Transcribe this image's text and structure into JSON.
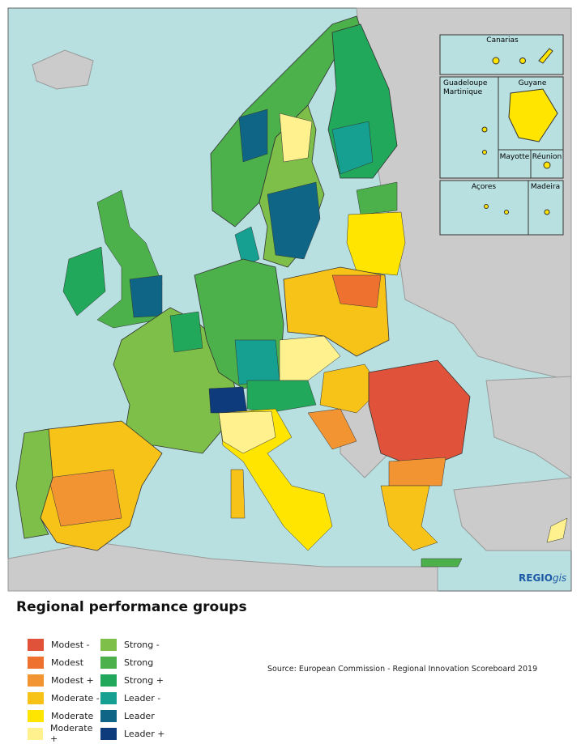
{
  "map": {
    "insets": [
      "Canarias",
      "Guadeloupe",
      "Martinique",
      "Guyane",
      "Mayotte",
      "Réunion",
      "Açores",
      "Madeira"
    ],
    "brand": {
      "regio": "REGIO",
      "gis": "gis"
    }
  },
  "legend": {
    "title": "Regional performance groups",
    "items": [
      {
        "label": "Modest -",
        "color": "#e0533a"
      },
      {
        "label": "Modest",
        "color": "#ee7130"
      },
      {
        "label": "Modest +",
        "color": "#f39433"
      },
      {
        "label": "Moderate -",
        "color": "#f8c319"
      },
      {
        "label": "Moderate",
        "color": "#ffe500"
      },
      {
        "label": "Moderate +",
        "color": "#fff28e"
      },
      {
        "label": "Strong -",
        "color": "#7dbf48"
      },
      {
        "label": "Strong",
        "color": "#4cb04b"
      },
      {
        "label": "Strong +",
        "color": "#22a85a"
      },
      {
        "label": "Leader -",
        "color": "#16a091"
      },
      {
        "label": "Leader",
        "color": "#0f6585"
      },
      {
        "label": "Leader +",
        "color": "#0d3b7b"
      }
    ]
  },
  "source": "Source: European Commission - Regional Innovation Scoreboard 2019"
}
